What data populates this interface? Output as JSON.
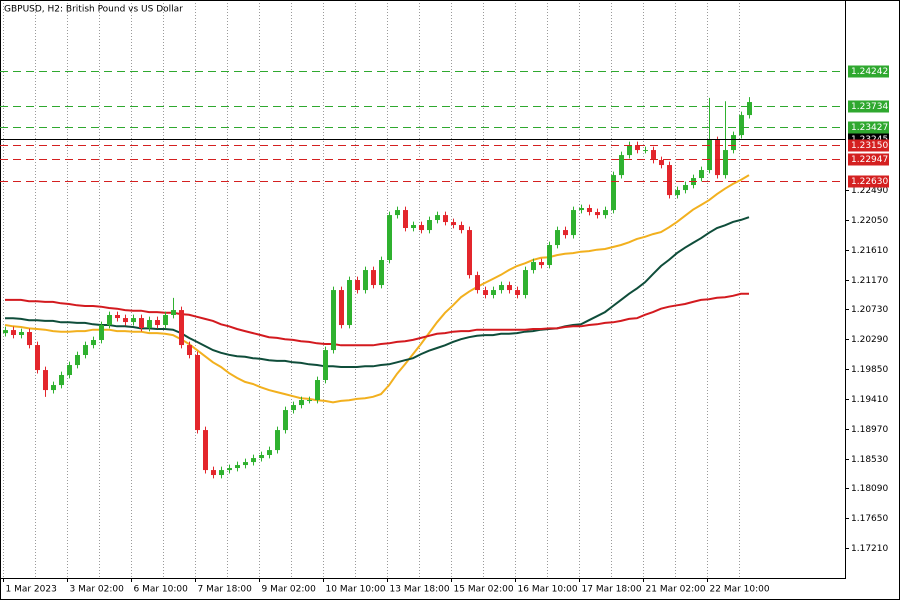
{
  "chart_data": {
    "type": "candlestick",
    "title": "GBPUSD, H2:  British Pound vs US Dollar",
    "categories": [
      "1 Mar 2023",
      null,
      null,
      null,
      null,
      null,
      null,
      null,
      "3 Mar 02:00",
      null,
      null,
      null,
      null,
      null,
      null,
      null,
      "6 Mar 10:00",
      null,
      null,
      null,
      null,
      null,
      null,
      null,
      "7 Mar 18:00",
      null,
      null,
      null,
      null,
      null,
      null,
      null,
      "9 Mar 02:00",
      null,
      null,
      null,
      null,
      null,
      null,
      null,
      "10 Mar 10:00",
      null,
      null,
      null,
      null,
      null,
      null,
      null,
      "13 Mar 18:00",
      null,
      null,
      null,
      null,
      null,
      null,
      null,
      "15 Mar 02:00",
      null,
      null,
      null,
      null,
      null,
      null,
      null,
      "16 Mar 10:00",
      null,
      null,
      null,
      null,
      null,
      null,
      null,
      "17 Mar 18:00",
      null,
      null,
      null,
      null,
      null,
      null,
      null,
      "21 Mar 02:00",
      null,
      null,
      null,
      null,
      null,
      null,
      null,
      "22 Mar 10:00",
      null,
      null,
      null,
      null,
      null
    ],
    "open": [
      1.2038,
      1.20425,
      1.20352,
      1.20396,
      1.20204,
      1.19835,
      1.1954,
      1.19614,
      1.19762,
      1.19909,
      1.20057,
      1.20204,
      1.20278,
      1.20499,
      1.20647,
      1.20602,
      1.20543,
      1.20602,
      1.20455,
      1.20573,
      1.20499,
      1.20647,
      1.2072,
      1.20204,
      1.20057,
      1.1895,
      1.1836,
      1.18287,
      1.1836,
      1.1839,
      1.18434,
      1.18478,
      1.18537,
      1.18582,
      1.18655,
      1.1895,
      1.19245,
      1.19319,
      1.19393,
      1.19393,
      1.19688,
      1.2013,
      1.21015,
      1.20499,
      1.21163,
      1.21015,
      1.2131,
      1.21089,
      1.21458,
      1.22121,
      1.22195,
      1.2193,
      1.21974,
      1.219,
      1.22048,
      1.22121,
      1.22018,
      1.21974,
      1.219,
      1.21236,
      1.21015,
      1.20942,
      1.21015,
      1.21089,
      1.21015,
      1.20942,
      1.2131,
      1.21428,
      1.21384,
      1.21679,
      1.219,
      1.21826,
      1.22195,
      1.22225,
      1.22166,
      1.22121,
      1.22195,
      1.22711,
      1.23006,
      1.23154,
      1.2308,
      1.2308,
      1.22933,
      1.22859,
      1.22416,
      1.2249,
      1.22564,
      1.22667,
      1.22785,
      1.23228,
      1.22711,
      1.2308,
      1.23301,
      1.23596
    ],
    "high": [
      1.20475,
      1.20475,
      1.20446,
      1.20446,
      1.20254,
      1.19885,
      1.19664,
      1.19812,
      1.19959,
      1.20107,
      1.20254,
      1.20328,
      1.20549,
      1.20697,
      1.20697,
      1.20652,
      1.20652,
      1.20652,
      1.20623,
      1.20623,
      1.20697,
      1.209,
      1.2077,
      1.20254,
      1.20107,
      1.19,
      1.1841,
      1.1841,
      1.1844,
      1.18484,
      1.18528,
      1.18587,
      1.18632,
      1.18705,
      1.19,
      1.19295,
      1.19369,
      1.19443,
      1.19443,
      1.19738,
      1.2018,
      1.21065,
      1.21065,
      1.21213,
      1.21213,
      1.2136,
      1.2136,
      1.21508,
      1.22171,
      1.22245,
      1.22245,
      1.22024,
      1.22024,
      1.22098,
      1.22171,
      1.22171,
      1.22068,
      1.22024,
      1.2195,
      1.21286,
      1.21065,
      1.21065,
      1.21139,
      1.21139,
      1.21065,
      1.2136,
      1.21478,
      1.21478,
      1.21729,
      1.2195,
      1.2195,
      1.22245,
      1.22275,
      1.22275,
      1.22216,
      1.22245,
      1.22761,
      1.23056,
      1.23204,
      1.23204,
      1.2313,
      1.2313,
      1.22983,
      1.22909,
      1.2254,
      1.22614,
      1.22717,
      1.22835,
      1.2385,
      1.23278,
      1.238,
      1.23351,
      1.23646,
      1.2386
    ],
    "low": [
      1.2033,
      1.20302,
      1.20302,
      1.20154,
      1.19785,
      1.1944,
      1.1949,
      1.19564,
      1.19712,
      1.19859,
      1.20007,
      1.20154,
      1.20228,
      1.20449,
      1.20552,
      1.20493,
      1.20493,
      1.20405,
      1.20405,
      1.20449,
      1.20449,
      1.20597,
      1.20154,
      1.20007,
      1.189,
      1.1831,
      1.18237,
      1.18237,
      1.1831,
      1.1834,
      1.18384,
      1.18428,
      1.18487,
      1.18532,
      1.18605,
      1.189,
      1.19195,
      1.19269,
      1.19343,
      1.19343,
      1.19638,
      1.2008,
      1.20449,
      1.20449,
      1.20965,
      1.20965,
      1.21039,
      1.21039,
      1.21408,
      1.22071,
      1.2188,
      1.2188,
      1.2185,
      1.2185,
      1.21998,
      1.21968,
      1.21924,
      1.2185,
      1.21186,
      1.20965,
      1.20892,
      1.20892,
      1.20965,
      1.20965,
      1.20892,
      1.20892,
      1.2126,
      1.21334,
      1.21334,
      1.21629,
      1.21776,
      1.21776,
      1.22145,
      1.22116,
      1.22071,
      1.22071,
      1.22145,
      1.22661,
      1.22956,
      1.2303,
      1.2303,
      1.22883,
      1.22809,
      1.22366,
      1.22366,
      1.2244,
      1.22514,
      1.22617,
      1.22735,
      1.22661,
      1.22661,
      1.2303,
      1.23251,
      1.23546
    ],
    "close": [
      1.20425,
      1.20352,
      1.20396,
      1.20204,
      1.19835,
      1.1954,
      1.19614,
      1.19762,
      1.19909,
      1.20057,
      1.20204,
      1.20278,
      1.20499,
      1.20647,
      1.20602,
      1.20543,
      1.20602,
      1.20455,
      1.20573,
      1.20499,
      1.20647,
      1.2072,
      1.20204,
      1.20057,
      1.1895,
      1.1836,
      1.18287,
      1.1836,
      1.1839,
      1.18434,
      1.18478,
      1.18537,
      1.18582,
      1.18655,
      1.1895,
      1.19245,
      1.19319,
      1.19393,
      1.19393,
      1.19688,
      1.2013,
      1.21015,
      1.20499,
      1.21163,
      1.21015,
      1.2131,
      1.21089,
      1.21458,
      1.22121,
      1.22195,
      1.2193,
      1.21974,
      1.219,
      1.22048,
      1.22121,
      1.22018,
      1.21974,
      1.219,
      1.21236,
      1.21015,
      1.20942,
      1.21015,
      1.21089,
      1.21015,
      1.20942,
      1.2131,
      1.21428,
      1.21384,
      1.21679,
      1.219,
      1.21826,
      1.22195,
      1.22225,
      1.22166,
      1.22121,
      1.22195,
      1.22711,
      1.23006,
      1.23154,
      1.2308,
      1.2308,
      1.22933,
      1.22859,
      1.22416,
      1.2249,
      1.22564,
      1.22667,
      1.22785,
      1.23228,
      1.22711,
      1.2308,
      1.23301,
      1.23596,
      1.23788
    ],
    "up_color": "#2fb12f",
    "down_color": "#e3262c",
    "moving_averages": [
      {
        "color": "#f2b01e",
        "values": [
          1.205,
          1.2048,
          1.2047,
          1.2045,
          1.2044,
          1.2043,
          1.2041,
          1.204,
          1.204,
          1.2041,
          1.2041,
          1.2043,
          1.2043,
          1.2043,
          1.2041,
          1.2041,
          1.204,
          1.204,
          1.2038,
          1.2038,
          1.2037,
          1.2035,
          1.2029,
          1.2022,
          1.2013,
          1.2004,
          1.1995,
          1.1988,
          1.1979,
          1.1972,
          1.1966,
          1.1963,
          1.1958,
          1.1954,
          1.1951,
          1.1948,
          1.1945,
          1.1942,
          1.1941,
          1.1939,
          1.1938,
          1.1936,
          1.1938,
          1.1939,
          1.1941,
          1.1942,
          1.1944,
          1.1948,
          1.1961,
          1.1978,
          1.1992,
          1.2007,
          1.2022,
          1.2038,
          1.2054,
          1.2068,
          1.2079,
          1.2091,
          1.2099,
          1.2106,
          1.2112,
          1.2118,
          1.2124,
          1.2131,
          1.2137,
          1.2141,
          1.2146,
          1.2149,
          1.215,
          1.2153,
          1.2155,
          1.2156,
          1.2158,
          1.2159,
          1.2161,
          1.2162,
          1.2165,
          1.2168,
          1.2172,
          1.2177,
          1.218,
          1.2184,
          1.2187,
          1.2194,
          1.2202,
          1.2211,
          1.222,
          1.2227,
          1.2234,
          1.2243,
          1.2251,
          1.2258,
          1.2264,
          1.2271
        ]
      },
      {
        "color": "#0f4d3a",
        "values": [
          1.206,
          1.206,
          1.2059,
          1.2057,
          1.2057,
          1.2056,
          1.2056,
          1.2054,
          1.2054,
          1.2053,
          1.2053,
          1.2051,
          1.205,
          1.205,
          1.2048,
          1.2048,
          1.2047,
          1.2045,
          1.2045,
          1.2044,
          1.2044,
          1.2043,
          1.2038,
          1.2031,
          1.2025,
          1.2019,
          1.2013,
          1.2009,
          1.2006,
          1.2004,
          1.2003,
          1.2001,
          1.2,
          1.1998,
          1.1997,
          1.1997,
          1.1995,
          1.1994,
          1.1992,
          1.1991,
          1.1989,
          1.1989,
          1.1988,
          1.1988,
          1.1988,
          1.1989,
          1.1989,
          1.1991,
          1.1992,
          1.1995,
          1.1998,
          1.2001,
          1.2007,
          1.2012,
          1.2016,
          1.202,
          1.2025,
          1.2029,
          1.2032,
          1.2034,
          1.2035,
          1.2035,
          1.2037,
          1.2037,
          1.2038,
          1.204,
          1.2041,
          1.2043,
          1.2044,
          1.2045,
          1.2048,
          1.205,
          1.2051,
          1.2057,
          1.2063,
          1.2069,
          1.2078,
          1.2087,
          1.2096,
          1.2104,
          1.2113,
          1.2125,
          1.2137,
          1.2146,
          1.2156,
          1.2164,
          1.2171,
          1.2178,
          1.2186,
          1.2193,
          1.2197,
          1.2202,
          1.2205,
          1.2209
        ]
      },
      {
        "color": "#d31a1f",
        "values": [
          1.2087,
          1.2087,
          1.2087,
          1.2085,
          1.2085,
          1.2084,
          1.2084,
          1.2082,
          1.2081,
          1.2079,
          1.2078,
          1.2078,
          1.2077,
          1.2075,
          1.2074,
          1.2072,
          1.2071,
          1.2071,
          1.2069,
          1.2069,
          1.2068,
          1.2068,
          1.2066,
          1.2065,
          1.2062,
          1.2059,
          1.2056,
          1.2051,
          1.2048,
          1.2044,
          1.2041,
          1.2038,
          1.2035,
          1.2032,
          1.2031,
          1.2029,
          1.2028,
          1.2026,
          1.2025,
          1.2023,
          1.2022,
          1.2022,
          1.202,
          1.202,
          1.202,
          1.202,
          1.202,
          1.2022,
          1.2023,
          1.2025,
          1.2026,
          1.2028,
          1.2031,
          1.2034,
          1.2037,
          1.2038,
          1.204,
          1.2041,
          1.2041,
          1.2043,
          1.2043,
          1.2043,
          1.2043,
          1.2043,
          1.2043,
          1.2043,
          1.2044,
          1.2044,
          1.2045,
          1.2045,
          1.2047,
          1.2048,
          1.2048,
          1.205,
          1.2051,
          1.2053,
          1.2054,
          1.2056,
          1.2059,
          1.206,
          1.2065,
          1.2069,
          1.2074,
          1.2077,
          1.2079,
          1.2081,
          1.2084,
          1.2087,
          1.2088,
          1.209,
          1.2091,
          1.2093,
          1.2096,
          1.2096
        ]
      }
    ],
    "levels": [
      {
        "value": 1.24242,
        "label": "1.24242",
        "color": "#2fa82f",
        "style": "dashed"
      },
      {
        "value": 1.23734,
        "label": "1.23734",
        "color": "#2fa82f",
        "style": "dashed"
      },
      {
        "value": 1.23427,
        "label": "1.23427",
        "color": "#2fa82f",
        "style": "dashed"
      },
      {
        "value": 1.23245,
        "label": "1.23245",
        "color": "#000000",
        "style": "solid"
      },
      {
        "value": 1.2315,
        "label": "1.23150",
        "color": "#d42020",
        "style": "dashed"
      },
      {
        "value": 1.22947,
        "label": "1.22947",
        "color": "#d42020",
        "style": "dashed"
      },
      {
        "value": 1.2263,
        "label": "1.22630",
        "color": "#d42020",
        "style": "dashed"
      }
    ],
    "ylim": [
      1.16768,
      1.25293
    ],
    "yticks": [
      {
        "value": 1.1721,
        "label": "1.17210"
      },
      {
        "value": 1.1765,
        "label": "1.17650"
      },
      {
        "value": 1.1809,
        "label": "1.18090"
      },
      {
        "value": 1.1853,
        "label": "1.18530"
      },
      {
        "value": 1.1897,
        "label": "1.18970"
      },
      {
        "value": 1.1941,
        "label": "1.19410"
      },
      {
        "value": 1.1985,
        "label": "1.19850"
      },
      {
        "value": 1.2029,
        "label": "1.20290"
      },
      {
        "value": 1.2073,
        "label": "1.20730"
      },
      {
        "value": 1.2117,
        "label": "1.21170"
      },
      {
        "value": 1.2161,
        "label": "1.21610"
      },
      {
        "value": 1.2205,
        "label": "1.22050"
      },
      {
        "value": 1.2249,
        "label": "1.22490"
      }
    ],
    "grid": true
  }
}
